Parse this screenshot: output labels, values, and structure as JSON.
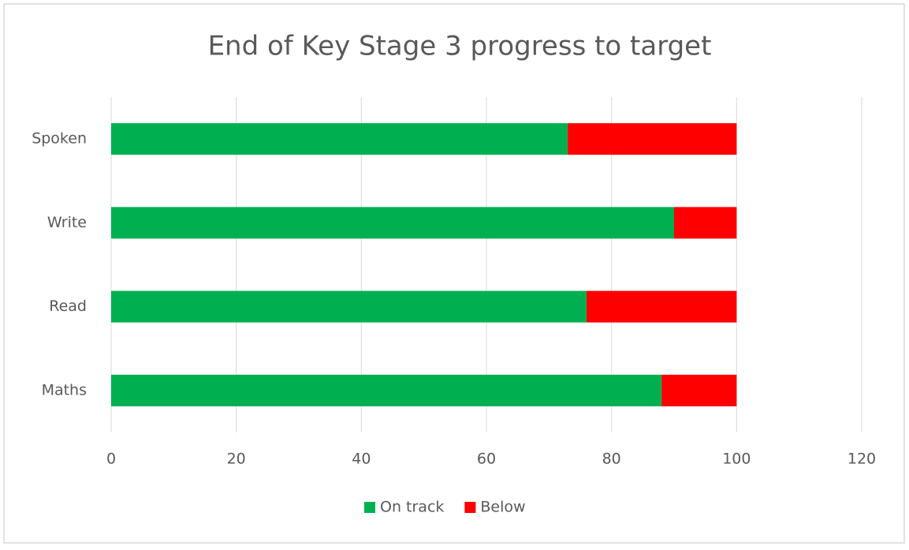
{
  "chart_data": {
    "type": "stacked_bar_horizontal",
    "title": "End of Key Stage 3 progress to target",
    "categories": [
      "Maths",
      "Read",
      "Write",
      "Spoken"
    ],
    "series": [
      {
        "name": "On track",
        "color": "#00b050",
        "values": [
          88,
          76,
          90,
          73
        ]
      },
      {
        "name": "Below",
        "color": "#ff0000",
        "values": [
          12,
          24,
          10,
          27
        ]
      }
    ],
    "xlim": [
      0,
      120
    ],
    "xticks": [
      0,
      20,
      40,
      60,
      80,
      100,
      120
    ],
    "grid": true,
    "legend": "bottom"
  }
}
